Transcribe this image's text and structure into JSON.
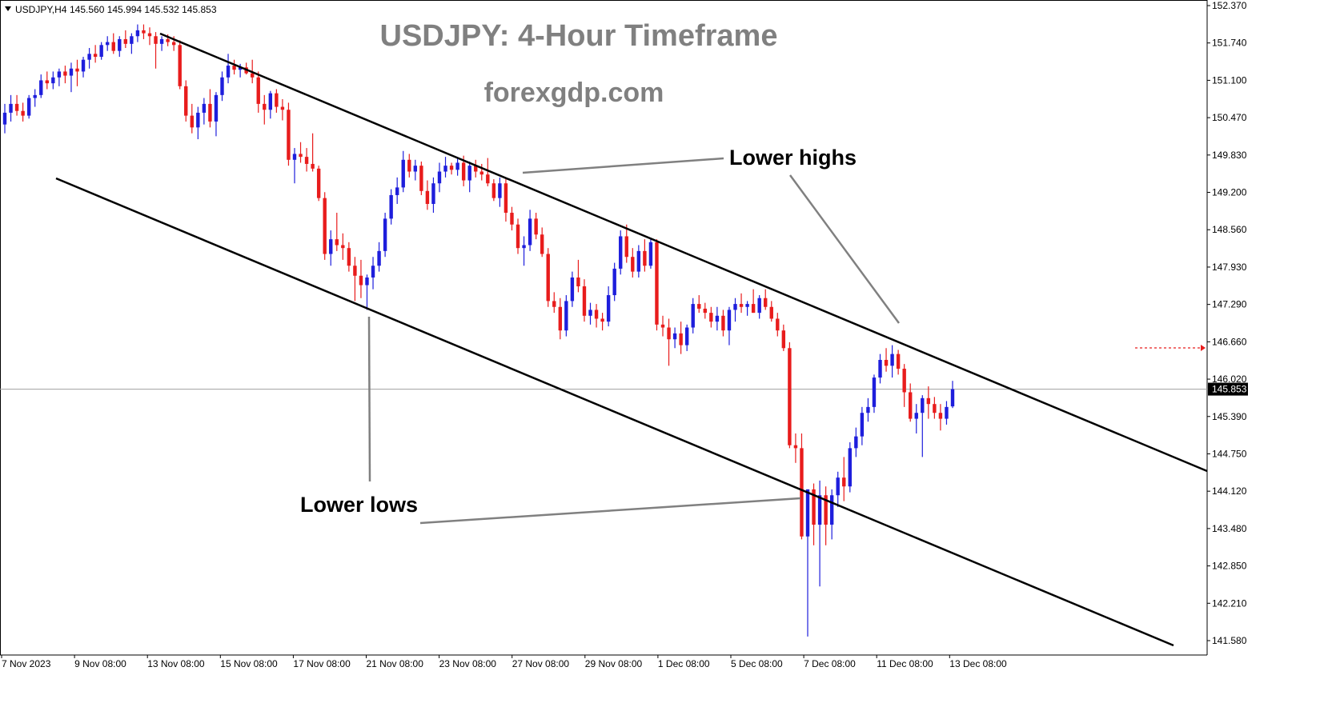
{
  "header": {
    "symbol_label": "USDJPY,H4",
    "ohlc_text": "145.560 145.994 145.532 145.853"
  },
  "title": "USDJPY: 4-Hour Timeframe",
  "site": "forexgdp.com",
  "annotations": {
    "lower_highs": "Lower highs",
    "lower_lows": "Lower lows"
  },
  "colors": {
    "bull": "#1e1edc",
    "bear": "#e81c1c",
    "trendline": "#000000",
    "pointer": "#808080",
    "price_line": "#a0a0a0"
  },
  "current_price": {
    "value": 145.853,
    "label": "145.853"
  },
  "chart_data": {
    "type": "candlestick",
    "symbol": "USDJPY",
    "timeframe": "H4",
    "x_tick_labels": [
      "7 Nov 2023",
      "9 Nov 08:00",
      "13 Nov 08:00",
      "15 Nov 08:00",
      "17 Nov 08:00",
      "21 Nov 08:00",
      "23 Nov 08:00",
      "27 Nov 08:00",
      "29 Nov 08:00",
      "1 Dec 08:00",
      "5 Dec 08:00",
      "7 Dec 08:00",
      "11 Dec 08:00",
      "13 Dec 08:00"
    ],
    "y_tick_labels": [
      "152.370",
      "151.740",
      "151.100",
      "150.470",
      "149.830",
      "149.200",
      "148.560",
      "147.930",
      "147.290",
      "146.660",
      "146.020",
      "145.390",
      "144.750",
      "144.120",
      "143.480",
      "142.850",
      "142.210",
      "141.580"
    ],
    "ylim": [
      141.58,
      152.37
    ],
    "candles": [
      [
        150.35,
        150.7,
        150.2,
        150.55
      ],
      [
        150.55,
        150.85,
        150.4,
        150.7
      ],
      [
        150.7,
        150.85,
        150.5,
        150.58
      ],
      [
        150.58,
        150.72,
        150.4,
        150.5
      ],
      [
        150.5,
        150.85,
        150.45,
        150.8
      ],
      [
        150.8,
        150.95,
        150.65,
        150.85
      ],
      [
        150.85,
        151.2,
        150.8,
        151.1
      ],
      [
        151.1,
        151.25,
        150.95,
        151.05
      ],
      [
        151.05,
        151.25,
        150.95,
        151.15
      ],
      [
        151.15,
        151.3,
        151.0,
        151.25
      ],
      [
        151.25,
        151.35,
        151.05,
        151.18
      ],
      [
        151.18,
        151.4,
        150.9,
        151.3
      ],
      [
        151.3,
        151.45,
        151.0,
        151.25
      ],
      [
        151.25,
        151.5,
        151.15,
        151.45
      ],
      [
        151.45,
        151.65,
        151.3,
        151.55
      ],
      [
        151.55,
        151.7,
        151.4,
        151.5
      ],
      [
        151.5,
        151.75,
        151.45,
        151.7
      ],
      [
        151.7,
        151.85,
        151.6,
        151.75
      ],
      [
        151.75,
        151.9,
        151.55,
        151.6
      ],
      [
        151.6,
        151.85,
        151.5,
        151.8
      ],
      [
        151.8,
        151.95,
        151.65,
        151.72
      ],
      [
        151.72,
        151.9,
        151.55,
        151.85
      ],
      [
        151.85,
        152.05,
        151.75,
        151.95
      ],
      [
        151.95,
        152.05,
        151.8,
        151.9
      ],
      [
        151.9,
        152.0,
        151.7,
        151.85
      ],
      [
        151.85,
        151.92,
        151.3,
        151.72
      ],
      [
        151.72,
        151.85,
        151.6,
        151.8
      ],
      [
        151.8,
        151.88,
        151.68,
        151.75
      ],
      [
        151.75,
        151.85,
        151.6,
        151.7
      ],
      [
        151.7,
        151.78,
        150.95,
        151.0
      ],
      [
        151.0,
        151.1,
        150.4,
        150.5
      ],
      [
        150.5,
        150.7,
        150.2,
        150.3
      ],
      [
        150.3,
        150.65,
        150.1,
        150.55
      ],
      [
        150.55,
        150.8,
        150.35,
        150.7
      ],
      [
        150.7,
        150.95,
        150.3,
        150.4
      ],
      [
        150.4,
        150.9,
        150.15,
        150.85
      ],
      [
        150.85,
        151.25,
        150.75,
        151.15
      ],
      [
        151.15,
        151.55,
        151.05,
        151.35
      ],
      [
        151.35,
        151.45,
        151.2,
        151.28
      ],
      [
        151.28,
        151.38,
        151.15,
        151.32
      ],
      [
        151.32,
        151.4,
        151.2,
        151.22
      ],
      [
        151.22,
        151.45,
        151.05,
        151.15
      ],
      [
        151.15,
        151.25,
        150.55,
        150.7
      ],
      [
        150.7,
        150.85,
        150.35,
        150.6
      ],
      [
        150.6,
        150.92,
        150.45,
        150.88
      ],
      [
        150.88,
        150.95,
        150.55,
        150.65
      ],
      [
        150.65,
        150.78,
        150.42,
        150.6
      ],
      [
        150.6,
        150.72,
        149.65,
        149.75
      ],
      [
        149.75,
        149.95,
        149.35,
        149.85
      ],
      [
        149.85,
        150.05,
        149.7,
        149.8
      ],
      [
        149.8,
        149.95,
        149.55,
        149.68
      ],
      [
        149.68,
        150.2,
        149.55,
        149.6
      ],
      [
        149.6,
        149.65,
        149.05,
        149.1
      ],
      [
        149.1,
        149.2,
        148.05,
        148.15
      ],
      [
        148.15,
        148.55,
        147.95,
        148.4
      ],
      [
        148.4,
        148.85,
        148.2,
        148.3
      ],
      [
        148.3,
        148.5,
        148.05,
        148.25
      ],
      [
        148.25,
        148.35,
        147.85,
        147.95
      ],
      [
        147.95,
        148.1,
        147.35,
        147.78
      ],
      [
        147.78,
        148.05,
        147.4,
        147.62
      ],
      [
        147.62,
        147.8,
        147.2,
        147.75
      ],
      [
        147.75,
        148.1,
        147.55,
        147.95
      ],
      [
        147.95,
        148.35,
        147.85,
        148.2
      ],
      [
        148.2,
        148.85,
        148.1,
        148.75
      ],
      [
        148.75,
        149.25,
        148.65,
        149.15
      ],
      [
        149.15,
        149.45,
        149.0,
        149.28
      ],
      [
        149.28,
        149.9,
        149.2,
        149.75
      ],
      [
        149.75,
        149.85,
        149.45,
        149.55
      ],
      [
        149.55,
        149.75,
        149.4,
        149.65
      ],
      [
        149.65,
        149.72,
        149.15,
        149.22
      ],
      [
        149.22,
        149.4,
        148.9,
        149.0
      ],
      [
        149.0,
        149.45,
        148.85,
        149.35
      ],
      [
        149.35,
        149.7,
        149.2,
        149.55
      ],
      [
        149.55,
        149.8,
        149.45,
        149.65
      ],
      [
        149.65,
        149.7,
        149.5,
        149.58
      ],
      [
        149.58,
        149.78,
        149.48,
        149.7
      ],
      [
        149.7,
        149.82,
        149.3,
        149.4
      ],
      [
        149.4,
        149.72,
        149.2,
        149.65
      ],
      [
        149.65,
        149.75,
        149.45,
        149.55
      ],
      [
        149.55,
        149.68,
        149.4,
        149.5
      ],
      [
        149.5,
        149.78,
        149.3,
        149.35
      ],
      [
        149.35,
        149.42,
        149.05,
        149.1
      ],
      [
        149.1,
        149.45,
        148.95,
        149.35
      ],
      [
        149.35,
        149.42,
        148.7,
        148.85
      ],
      [
        148.85,
        148.95,
        148.55,
        148.65
      ],
      [
        148.65,
        148.75,
        148.15,
        148.25
      ],
      [
        148.25,
        148.45,
        147.95,
        148.3
      ],
      [
        148.3,
        148.9,
        148.2,
        148.75
      ],
      [
        148.75,
        148.85,
        148.4,
        148.48
      ],
      [
        148.48,
        148.6,
        148.1,
        148.15
      ],
      [
        148.15,
        148.25,
        147.25,
        147.35
      ],
      [
        147.35,
        147.5,
        147.15,
        147.25
      ],
      [
        147.25,
        147.4,
        146.7,
        146.85
      ],
      [
        146.85,
        147.45,
        146.75,
        147.35
      ],
      [
        147.35,
        147.85,
        147.25,
        147.75
      ],
      [
        147.75,
        148.05,
        147.5,
        147.6
      ],
      [
        147.6,
        147.72,
        147.0,
        147.1
      ],
      [
        147.1,
        147.32,
        146.95,
        147.2
      ],
      [
        147.2,
        147.3,
        146.9,
        147.05
      ],
      [
        147.05,
        147.15,
        146.85,
        147.0
      ],
      [
        147.0,
        147.6,
        146.92,
        147.45
      ],
      [
        147.45,
        148.0,
        147.35,
        147.9
      ],
      [
        147.9,
        148.55,
        147.8,
        148.45
      ],
      [
        148.45,
        148.65,
        148.0,
        148.1
      ],
      [
        148.1,
        148.25,
        147.75,
        147.85
      ],
      [
        147.85,
        148.3,
        147.75,
        148.2
      ],
      [
        148.2,
        148.4,
        147.85,
        147.95
      ],
      [
        147.95,
        148.4,
        147.9,
        148.35
      ],
      [
        148.35,
        148.4,
        146.85,
        146.95
      ],
      [
        146.95,
        147.1,
        146.75,
        146.9
      ],
      [
        146.9,
        147.05,
        146.25,
        146.7
      ],
      [
        146.7,
        146.9,
        146.55,
        146.8
      ],
      [
        146.8,
        147.0,
        146.45,
        146.6
      ],
      [
        146.6,
        146.95,
        146.5,
        146.9
      ],
      [
        146.9,
        147.4,
        146.8,
        147.3
      ],
      [
        147.3,
        147.45,
        147.15,
        147.22
      ],
      [
        147.22,
        147.32,
        147.05,
        147.15
      ],
      [
        147.15,
        147.25,
        146.9,
        147.0
      ],
      [
        147.0,
        147.25,
        146.85,
        147.1
      ],
      [
        147.1,
        147.2,
        146.75,
        146.85
      ],
      [
        146.85,
        147.25,
        146.6,
        147.2
      ],
      [
        147.2,
        147.4,
        147.0,
        147.3
      ],
      [
        147.3,
        147.48,
        147.15,
        147.25
      ],
      [
        147.25,
        147.35,
        147.1,
        147.3
      ],
      [
        147.3,
        147.55,
        147.15,
        147.15
      ],
      [
        147.15,
        147.45,
        147.05,
        147.4
      ],
      [
        147.4,
        147.55,
        147.2,
        147.25
      ],
      [
        147.25,
        147.35,
        147.0,
        147.05
      ],
      [
        147.05,
        147.15,
        146.75,
        146.85
      ],
      [
        146.85,
        146.95,
        146.5,
        146.55
      ],
      [
        146.55,
        146.65,
        144.85,
        144.9
      ],
      [
        144.9,
        145.1,
        144.6,
        144.85
      ],
      [
        144.85,
        145.1,
        143.3,
        143.35
      ],
      [
        143.35,
        144.15,
        141.65,
        144.15
      ],
      [
        144.15,
        144.25,
        143.2,
        143.55
      ],
      [
        143.55,
        144.3,
        142.5,
        144.05
      ],
      [
        144.05,
        144.2,
        143.2,
        143.55
      ],
      [
        143.55,
        144.15,
        143.3,
        144.05
      ],
      [
        144.05,
        144.45,
        143.85,
        144.35
      ],
      [
        144.35,
        144.7,
        143.95,
        144.2
      ],
      [
        144.2,
        144.95,
        144.1,
        144.85
      ],
      [
        144.85,
        145.2,
        144.7,
        145.05
      ],
      [
        145.05,
        145.55,
        144.9,
        145.45
      ],
      [
        145.45,
        145.7,
        145.3,
        145.55
      ],
      [
        145.55,
        146.1,
        145.45,
        146.05
      ],
      [
        146.05,
        146.45,
        145.95,
        146.35
      ],
      [
        146.35,
        146.55,
        146.15,
        146.25
      ],
      [
        146.25,
        146.6,
        146.05,
        146.45
      ],
      [
        146.45,
        146.52,
        146.1,
        146.2
      ],
      [
        146.2,
        146.28,
        145.55,
        145.8
      ],
      [
        145.8,
        145.95,
        145.3,
        145.35
      ],
      [
        145.35,
        145.6,
        145.1,
        145.45
      ],
      [
        145.45,
        145.75,
        144.7,
        145.7
      ],
      [
        145.7,
        145.9,
        145.35,
        145.6
      ],
      [
        145.6,
        145.72,
        145.35,
        145.45
      ],
      [
        145.45,
        145.6,
        145.15,
        145.35
      ],
      [
        145.35,
        145.65,
        145.25,
        145.55
      ],
      [
        145.56,
        145.994,
        145.532,
        145.853
      ]
    ],
    "trend_channel": {
      "upper": [
        [
          {
            "date": "13 Nov 08:00",
            "price": 151.97
          }
        ],
        [
          {
            "date": "13 Dec 20:00",
            "price": 144.5
          }
        ]
      ],
      "lower": [
        [
          {
            "date": "8 Nov 08:00",
            "price": 149.5
          }
        ],
        [
          {
            "date": "15 Dec 08:00",
            "price": 141.6
          }
        ]
      ]
    }
  }
}
